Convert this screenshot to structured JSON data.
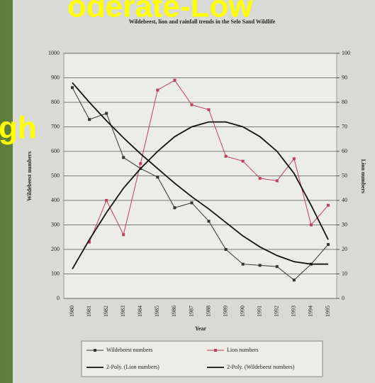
{
  "slide": {
    "heading": "oderate-Low",
    "side_text": "gh"
  },
  "chart_data": {
    "type": "line",
    "title": "Wildebeest, lion and rainfall trends in the Selo Sand Wildlife",
    "x_label": "Year",
    "y_label": "Wildebeest numbers",
    "y2_label": "Lion numbers",
    "categories": [
      "1980",
      "1981",
      "1982",
      "1983",
      "1984",
      "1985",
      "1986",
      "1987",
      "1988",
      "1989",
      "1990",
      "1991",
      "1992",
      "1993",
      "1994",
      "1995"
    ],
    "series": [
      {
        "name": "Wildebeest numbers",
        "color": "#333333",
        "marker": true,
        "values": [
          860,
          730,
          755,
          575,
          530,
          495,
          370,
          390,
          315,
          200,
          140,
          135,
          130,
          75,
          140,
          220
        ]
      },
      {
        "name": "Lion numbers",
        "color": "#c0405a",
        "marker": true,
        "axis": "y2",
        "values": [
          null,
          23,
          40,
          26,
          55,
          85,
          89,
          79,
          77,
          58,
          56,
          49,
          48,
          57,
          30,
          38
        ]
      },
      {
        "name": "2-Poly. (Lion numbers)",
        "color": "#111111",
        "marker": false,
        "axis": "y2",
        "values": [
          12,
          24,
          35,
          45,
          53,
          60,
          66,
          70,
          72,
          72,
          70,
          66,
          60,
          51,
          38,
          24
        ]
      },
      {
        "name": "2-Poly. (Wildebeest numbers)",
        "color": "#111111",
        "marker": false,
        "values": [
          880,
          800,
          725,
          655,
          590,
          530,
          470,
          415,
          365,
          310,
          255,
          210,
          175,
          150,
          140,
          140
        ]
      }
    ],
    "ylim": [
      0,
      1000
    ],
    "yticks": [
      0,
      100,
      200,
      300,
      400,
      500,
      600,
      700,
      800,
      900,
      1000
    ],
    "y2lim": [
      0,
      100
    ],
    "y2ticks": [
      0,
      10,
      20,
      30,
      40,
      50,
      60,
      70,
      80,
      90,
      100
    ],
    "grid": true,
    "legend": "bottom"
  }
}
